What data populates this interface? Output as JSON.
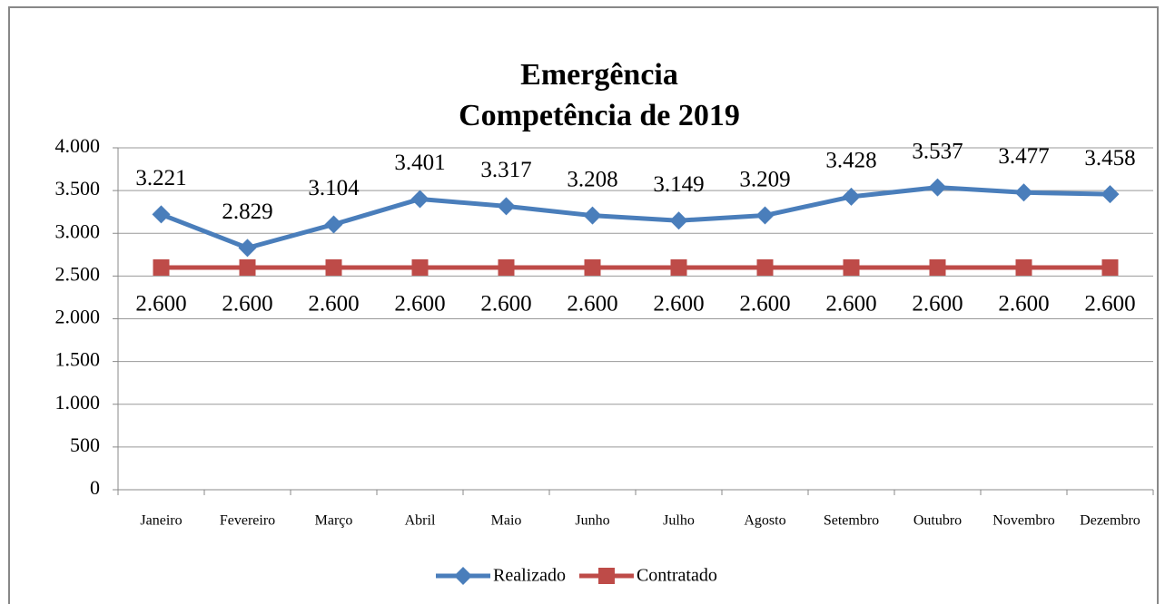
{
  "chart_data": {
    "type": "line",
    "title": "Emergência",
    "subtitle": "Competência de 2019",
    "categories": [
      "Janeiro",
      "Fevereiro",
      "Março",
      "Abril",
      "Maio",
      "Junho",
      "Julho",
      "Agosto",
      "Setembro",
      "Outubro",
      "Novembro",
      "Dezembro"
    ],
    "series": [
      {
        "name": "Realizado",
        "color": "#4a7ebb",
        "marker": "diamond",
        "values": [
          3221,
          2829,
          3104,
          3401,
          3317,
          3208,
          3149,
          3209,
          3428,
          3537,
          3477,
          3458
        ],
        "value_labels": [
          "3.221",
          "2.829",
          "3.104",
          "3.401",
          "3.317",
          "3.208",
          "3.149",
          "3.209",
          "3.428",
          "3.537",
          "3.477",
          "3.458"
        ]
      },
      {
        "name": "Contratado",
        "color": "#be4b48",
        "marker": "square",
        "values": [
          2600,
          2600,
          2600,
          2600,
          2600,
          2600,
          2600,
          2600,
          2600,
          2600,
          2600,
          2600
        ],
        "value_labels": [
          "2.600",
          "2.600",
          "2.600",
          "2.600",
          "2.600",
          "2.600",
          "2.600",
          "2.600",
          "2.600",
          "2.600",
          "2.600",
          "2.600"
        ]
      }
    ],
    "ylim": [
      0,
      4000
    ],
    "yticks": [
      0,
      500,
      {
        "value": 1000,
        "label": "1.000"
      },
      {
        "value": 1500,
        "label": "1.500"
      },
      {
        "value": 2000,
        "label": "2.000"
      },
      {
        "value": 2500,
        "label": "2.500"
      },
      {
        "value": 3000,
        "label": "3.000"
      },
      {
        "value": 3500,
        "label": "3.500"
      },
      {
        "value": 4000,
        "label": "4.000"
      }
    ],
    "grid": true,
    "legend": "bottom"
  }
}
